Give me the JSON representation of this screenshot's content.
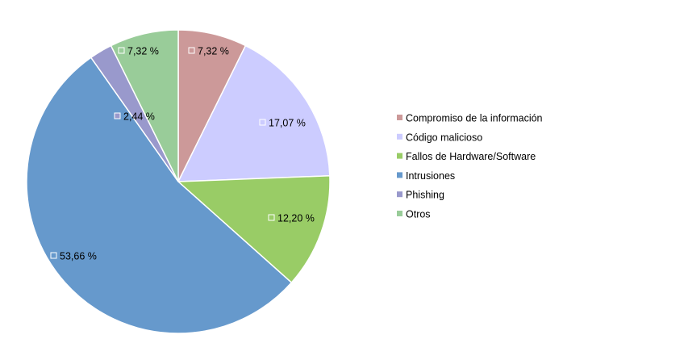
{
  "chart_data": {
    "type": "pie",
    "title": "",
    "slices": [
      {
        "name": "Compromiso de la información",
        "value": 7.32,
        "label": "7,32 %",
        "color": "#cc9999"
      },
      {
        "name": "Código malicioso",
        "value": 17.07,
        "label": "17,07 %",
        "color": "#ccccff"
      },
      {
        "name": "Fallos de Hardware/Software",
        "value": 12.2,
        "label": "12,20 %",
        "color": "#99cc66"
      },
      {
        "name": "Intrusiones",
        "value": 53.66,
        "label": "53,66 %",
        "color": "#6699cc"
      },
      {
        "name": "Phishing",
        "value": 2.44,
        "label": "2,44 %",
        "color": "#9999cc"
      },
      {
        "name": "Otros",
        "value": 7.32,
        "label": "7,32 %",
        "color": "#99cc99"
      }
    ],
    "start_angle": "top",
    "direction": "clockwise",
    "legend_position": "right"
  }
}
